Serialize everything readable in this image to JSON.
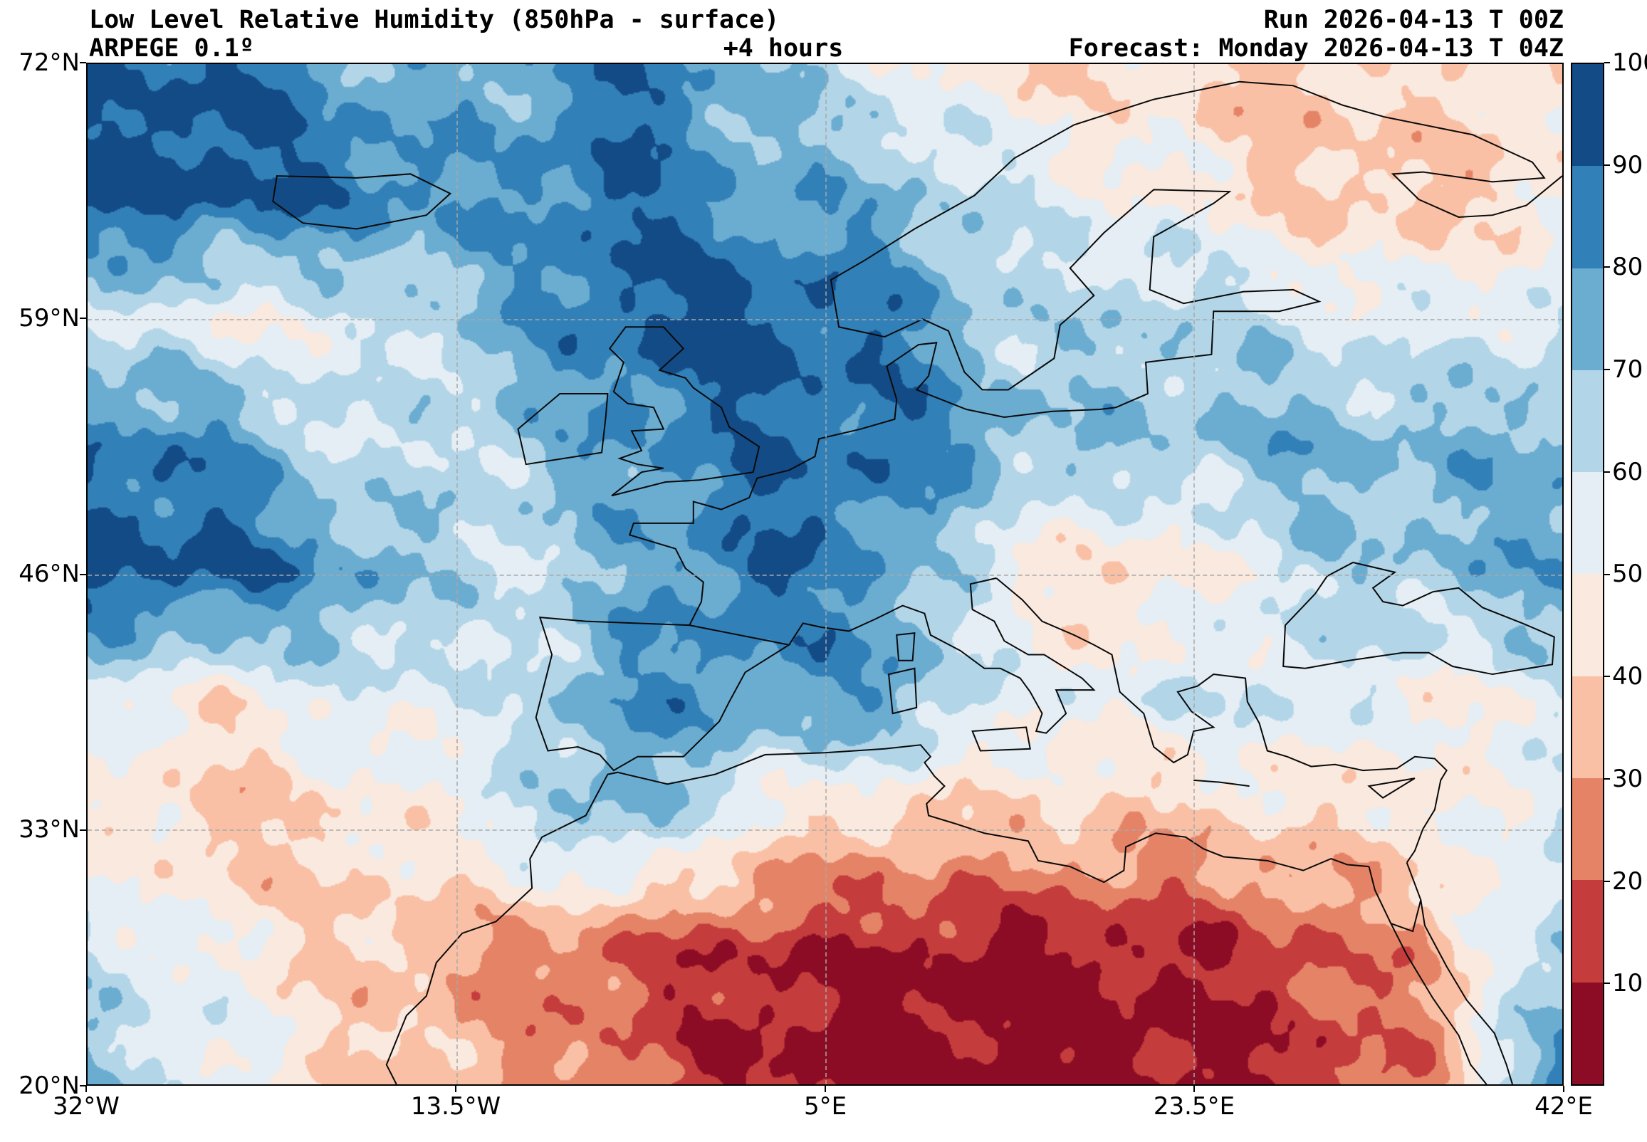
{
  "header": {
    "title": "Low Level Relative Humidity (850hPa - surface)",
    "model": "ARPEGE 0.1º",
    "lead": "+4 hours",
    "run": "Run 2026-04-13 T 00Z",
    "forecast": "Forecast: Monday 2026-04-13 T 04Z"
  },
  "axes": {
    "x_ticks": [
      "32°W",
      "13.5°W",
      "5°E",
      "23.5°E",
      "42°E"
    ],
    "y_ticks": [
      "72°N",
      "59°N",
      "46°N",
      "33°N",
      "20°N"
    ]
  },
  "colorbar": {
    "tick_labels": [
      "100",
      "90",
      "80",
      "70",
      "60",
      "50",
      "40",
      "30",
      "20",
      "10"
    ]
  },
  "chart_data": {
    "type": "heatmap",
    "subtype": "filled-contour-weather-map",
    "title": "Low Level Relative Humidity (850hPa - surface)",
    "model": "ARPEGE 0.1º",
    "lead_time": "+4 hours",
    "run": "Run 2026-04-13 T 00Z",
    "forecast_valid": "Forecast: Monday 2026-04-13 T 04Z",
    "units": "%",
    "lon_range": [
      -32,
      42
    ],
    "lat_range": [
      20,
      72
    ],
    "x_tick_labels": [
      "32°W",
      "13.5°W",
      "5°E",
      "23.5°E",
      "42°E"
    ],
    "y_tick_labels": [
      "72°N",
      "59°N",
      "46°N",
      "33°N",
      "20°N"
    ],
    "levels": [
      0,
      10,
      20,
      30,
      40,
      50,
      60,
      70,
      80,
      90,
      100
    ],
    "colors": [
      "#8d0c25",
      "#c43c3c",
      "#e58367",
      "#f9c0a5",
      "#fae9df",
      "#e4eef4",
      "#b2d5e7",
      "#6bacd1",
      "#3280b8",
      "#134b87"
    ],
    "colorbar_ticks": [
      100,
      90,
      80,
      70,
      60,
      50,
      40,
      30,
      20,
      10
    ],
    "grid": {
      "comment": "approximate relative humidity field (%) sampled on a coarse lon/lat grid, lat descending",
      "lons": [
        -32,
        -25.3,
        -18.5,
        -11.8,
        -5.1,
        1.6,
        8.4,
        15.1,
        21.8,
        28.5,
        35.3,
        42
      ],
      "lats": [
        72,
        65.5,
        59,
        52.5,
        46,
        39.5,
        33,
        26.5,
        20
      ],
      "values": [
        [
          88,
          92,
          75,
          72,
          88,
          72,
          55,
          40,
          42,
          35,
          45,
          42
        ],
        [
          95,
          95,
          88,
          78,
          92,
          75,
          72,
          58,
          50,
          38,
          35,
          45
        ],
        [
          62,
          50,
          55,
          72,
          92,
          95,
          85,
          62,
          68,
          60,
          55,
          60
        ],
        [
          88,
          82,
          58,
          65,
          78,
          88,
          88,
          72,
          68,
          75,
          72,
          75
        ],
        [
          95,
          93,
          78,
          60,
          72,
          90,
          78,
          45,
          40,
          62,
          70,
          78
        ],
        [
          55,
          45,
          58,
          55,
          82,
          78,
          78,
          52,
          58,
          60,
          48,
          55
        ],
        [
          48,
          35,
          42,
          55,
          72,
          45,
          35,
          38,
          35,
          40,
          45,
          60
        ],
        [
          65,
          50,
          38,
          28,
          18,
          10,
          7,
          5,
          8,
          15,
          30,
          70
        ],
        [
          70,
          55,
          40,
          33,
          22,
          7,
          5,
          5,
          5,
          10,
          25,
          85
        ]
      ]
    },
    "grid_lines": {
      "lon_positions_pct": [
        25,
        50,
        75
      ],
      "lat_positions_pct": [
        25,
        50,
        75
      ],
      "style": "dashed gray"
    }
  }
}
